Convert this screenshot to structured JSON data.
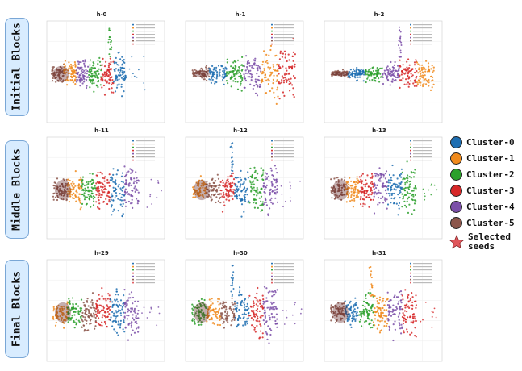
{
  "row_labels": [
    "Initial Blocks",
    "Middle Blocks",
    "Final Blocks"
  ],
  "legend": {
    "clusters": [
      {
        "label": "Cluster-0",
        "color": "#1f6fb2"
      },
      {
        "label": "Cluster-1",
        "color": "#f08a1c"
      },
      {
        "label": "Cluster-2",
        "color": "#2ca02c"
      },
      {
        "label": "Cluster-3",
        "color": "#d62728"
      },
      {
        "label": "Cluster-4",
        "color": "#7b4fa8"
      },
      {
        "label": "Cluster-5",
        "color": "#8c564b"
      }
    ],
    "seeds_label_line1": "Selected",
    "seeds_label_line2": "seeds",
    "seeds_color": "#e0565b"
  },
  "chart_data": [
    {
      "type": "scatter",
      "title": "h-0",
      "row": 0,
      "col": 0,
      "shape": "fan",
      "cluster_order": [
        5,
        1,
        4,
        2,
        3,
        0
      ],
      "spike": true,
      "outliers": "right"
    },
    {
      "type": "scatter",
      "title": "h-1",
      "row": 0,
      "col": 1,
      "shape": "cone",
      "cluster_order": [
        5,
        0,
        2,
        4,
        1,
        3
      ],
      "spike": false,
      "outliers": "none"
    },
    {
      "type": "scatter",
      "title": "h-2",
      "row": 0,
      "col": 2,
      "shape": "flat",
      "cluster_order": [
        5,
        0,
        2,
        4,
        3,
        1
      ],
      "spike": true,
      "outliers": "none"
    },
    {
      "type": "scatter",
      "title": "h-11",
      "row": 1,
      "col": 0,
      "shape": "blob",
      "cluster_order": [
        5,
        1,
        2,
        3,
        0,
        4
      ],
      "spike": false,
      "outliers": "right"
    },
    {
      "type": "scatter",
      "title": "h-12",
      "row": 1,
      "col": 1,
      "shape": "blob",
      "cluster_order": [
        1,
        5,
        3,
        0,
        2,
        4
      ],
      "spike": true,
      "outliers": "right"
    },
    {
      "type": "scatter",
      "title": "h-13",
      "row": 1,
      "col": 2,
      "shape": "blob",
      "cluster_order": [
        5,
        1,
        3,
        4,
        0,
        2
      ],
      "spike": false,
      "outliers": "right"
    },
    {
      "type": "scatter",
      "title": "h-29",
      "row": 2,
      "col": 0,
      "shape": "blob",
      "cluster_order": [
        1,
        2,
        5,
        3,
        0,
        4
      ],
      "spike": false,
      "outliers": "right"
    },
    {
      "type": "scatter",
      "title": "h-30",
      "row": 2,
      "col": 1,
      "shape": "blob",
      "cluster_order": [
        2,
        1,
        5,
        0,
        3,
        4
      ],
      "spike": true,
      "outliers": "right"
    },
    {
      "type": "scatter",
      "title": "h-31",
      "row": 2,
      "col": 2,
      "shape": "blob",
      "cluster_order": [
        5,
        0,
        2,
        1,
        4,
        3
      ],
      "spike": true,
      "outliers": "right"
    }
  ]
}
